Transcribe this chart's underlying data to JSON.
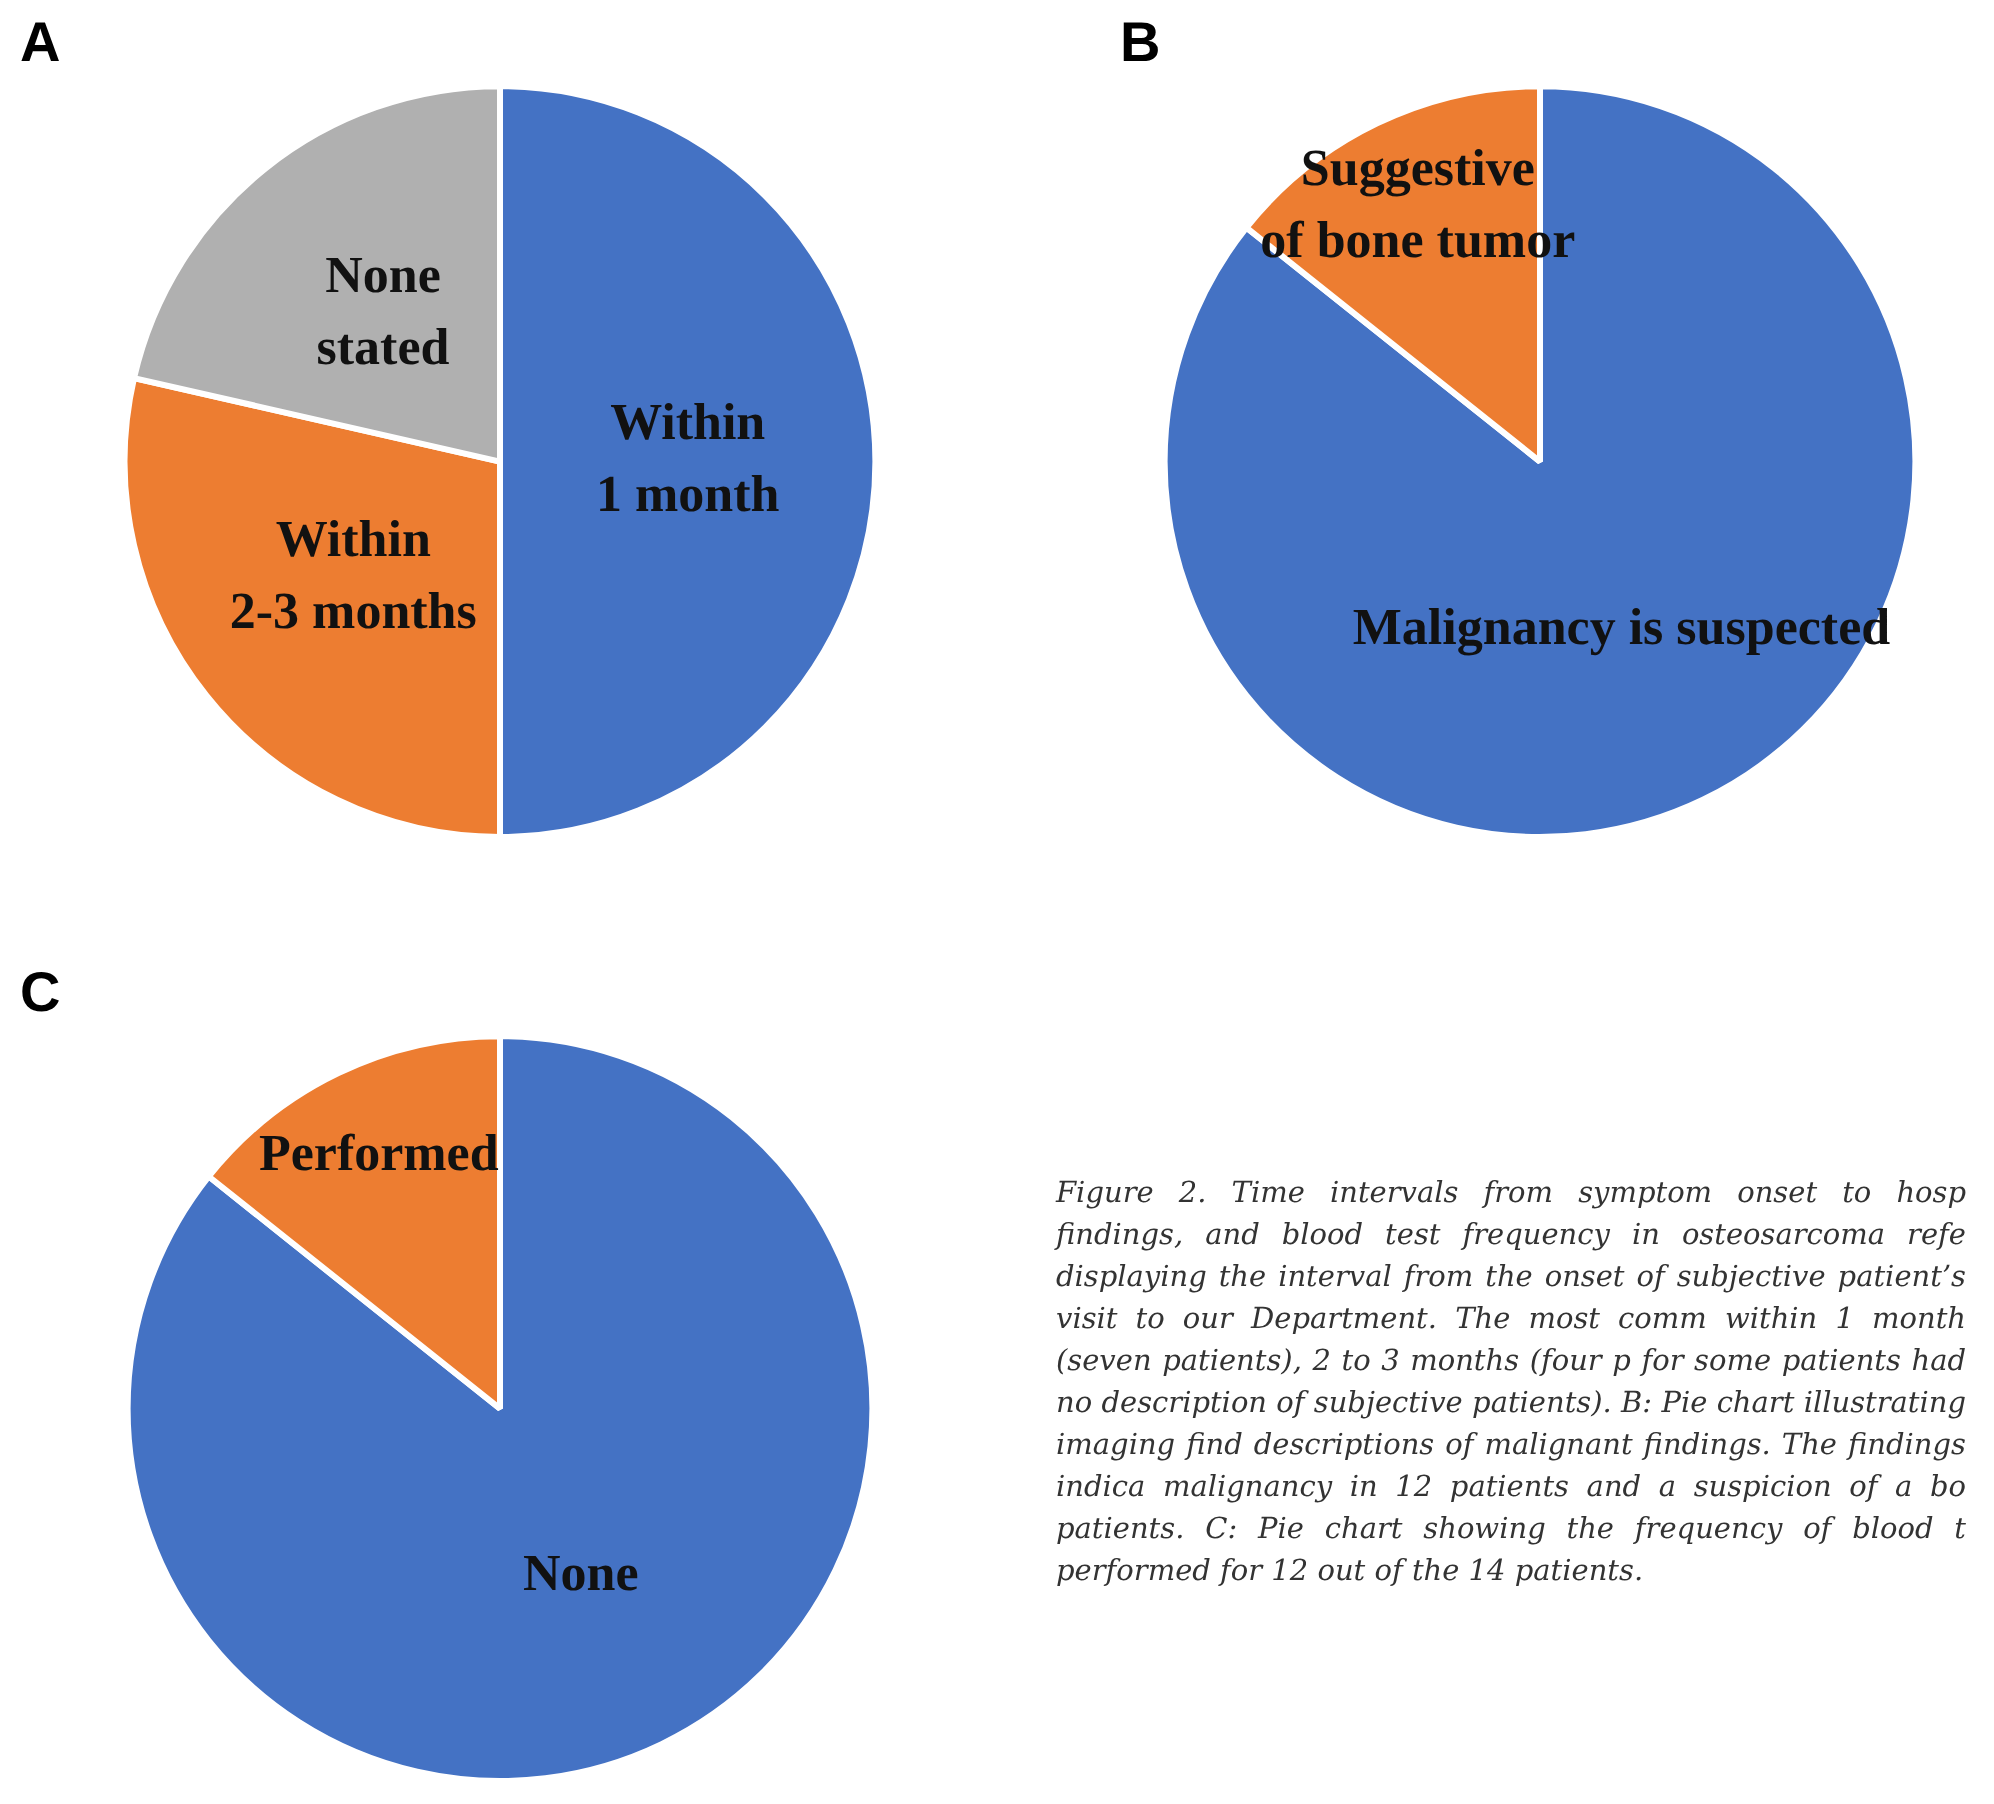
{
  "chart_data": [
    {
      "type": "pie",
      "title": "A",
      "categories": [
        "Within\n1 month",
        "Within\n2-3 months",
        "None\nstated"
      ],
      "values": [
        50,
        28.57,
        21.43
      ],
      "colors": [
        "#4472c4",
        "#ed7d31",
        "#b0b0b0"
      ],
      "legend": false
    },
    {
      "type": "pie",
      "title": "B",
      "categories": [
        "Malignancy is suspected",
        "Suggestive\nof bone tumor"
      ],
      "values": [
        85.71,
        14.29
      ],
      "colors": [
        "#4472c4",
        "#ed7d31"
      ],
      "legend": false
    },
    {
      "type": "pie",
      "title": "C",
      "categories": [
        "None",
        "Performed"
      ],
      "values": [
        85.71,
        14.29
      ],
      "colors": [
        "#4472c4",
        "#ed7d31"
      ],
      "legend": false,
      "annotations": [
        "Figure 2. Time intervals from symptom onset to hosp findings, and blood test frequency in osteosarcoma refe displaying the interval from the onset of subjective patient’s visit to our Department. The most comm within 1 month (seven patients), 2 to 3 months (four p for some patients had no description of subjective patients). B: Pie chart illustrating imaging find descriptions of malignant findings. The findings indica malignancy in 12 patients and a suspicion of a bo patients. C: Pie chart showing the frequency of blood t performed for 12 out of the 14 patients."
      ]
    }
  ]
}
